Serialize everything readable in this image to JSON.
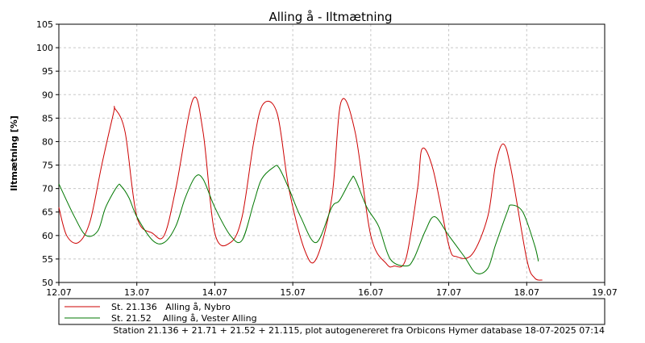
{
  "chart_data": {
    "type": "line",
    "title": "Alling å - Iltmætning",
    "ylabel": "Iltmætning [%]",
    "xlabel": "",
    "xlim": [
      0,
      7
    ],
    "ylim": [
      50,
      105
    ],
    "x_tick_labels": [
      "12.07",
      "13.07",
      "14.07",
      "15.07",
      "16.07",
      "17.07",
      "18.07",
      "19.07"
    ],
    "y_ticks": [
      50,
      55,
      60,
      65,
      70,
      75,
      80,
      85,
      90,
      95,
      100,
      105
    ],
    "grid": true,
    "legend_position": "bottom",
    "series": [
      {
        "name": "St. 21.136   Alling å, Nybro",
        "color": "#cc0000",
        "x": [
          0.0,
          0.1,
          0.25,
          0.4,
          0.55,
          0.7,
          0.72,
          0.85,
          1.0,
          1.2,
          1.35,
          1.5,
          1.72,
          1.85,
          2.0,
          2.2,
          2.35,
          2.5,
          2.62,
          2.8,
          2.95,
          3.15,
          3.3,
          3.5,
          3.62,
          3.8,
          4.0,
          4.2,
          4.3,
          4.45,
          4.6,
          4.66,
          4.8,
          5.0,
          5.1,
          5.3,
          5.5,
          5.6,
          5.7,
          5.8,
          6.0,
          6.1,
          6.2
        ],
        "y": [
          66,
          60,
          58.5,
          63,
          75,
          86,
          87,
          82,
          64,
          60.5,
          60,
          70,
          89,
          82,
          60.5,
          58.5,
          64,
          80,
          88,
          86,
          70,
          57,
          55,
          68,
          88.5,
          82,
          60,
          54,
          53.5,
          55,
          70,
          78.5,
          74,
          58,
          55.5,
          56,
          64,
          75,
          79.5,
          74,
          55,
          51,
          50.5
        ]
      },
      {
        "name": "St. 21.52    Alling å, Vester Alling",
        "color": "#007700",
        "x": [
          0.0,
          0.2,
          0.35,
          0.5,
          0.6,
          0.75,
          0.8,
          0.9,
          1.0,
          1.2,
          1.35,
          1.5,
          1.62,
          1.75,
          1.85,
          2.0,
          2.2,
          2.35,
          2.5,
          2.6,
          2.75,
          2.82,
          2.95,
          3.1,
          3.3,
          3.5,
          3.6,
          3.75,
          3.8,
          3.95,
          4.1,
          4.25,
          4.45,
          4.55,
          4.7,
          4.82,
          5.0,
          5.2,
          5.35,
          5.5,
          5.6,
          5.75,
          5.8,
          5.95,
          6.1,
          6.15
        ],
        "y": [
          71,
          64,
          60,
          61,
          66,
          70.5,
          70.5,
          68,
          64,
          59,
          58.5,
          62,
          68,
          72.5,
          72,
          66,
          60,
          59,
          67,
          72,
          74.5,
          74.5,
          70,
          64,
          58.5,
          66,
          67.5,
          72,
          72,
          66,
          62,
          55,
          53.5,
          55,
          61,
          64,
          60,
          55.5,
          52,
          53,
          58,
          65,
          66.5,
          65,
          58,
          54.5
        ]
      }
    ]
  },
  "footer_text": "Station 21.136 + 21.71 +  21.52 + 21.115, plot autogenereret fra Orbicons Hymer database 18-07-2025 07:14"
}
